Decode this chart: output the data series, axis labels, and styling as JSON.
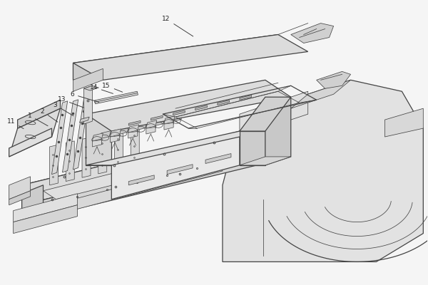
{
  "bg_color": "#f5f5f5",
  "line_color": "#444444",
  "fill_light": "#e8e8e8",
  "fill_mid": "#d8d8d8",
  "fill_dark": "#c8c8c8",
  "fig_width": 6.0,
  "fig_height": 4.0,
  "dpi": 100,
  "annotations": {
    "1": {
      "txt": [
        0.068,
        0.595
      ],
      "arr": [
        0.115,
        0.555
      ]
    },
    "2": {
      "txt": [
        0.098,
        0.61
      ],
      "arr": [
        0.138,
        0.568
      ]
    },
    "3": {
      "txt": [
        0.128,
        0.632
      ],
      "arr": [
        0.175,
        0.59
      ]
    },
    "6": {
      "txt": [
        0.168,
        0.67
      ],
      "arr": [
        0.235,
        0.64
      ]
    },
    "11": {
      "txt": [
        0.025,
        0.575
      ],
      "arr": [
        0.058,
        0.545
      ]
    },
    "12": {
      "txt": [
        0.388,
        0.935
      ],
      "arr": [
        0.455,
        0.87
      ]
    },
    "13": {
      "txt": [
        0.143,
        0.652
      ],
      "arr": [
        0.2,
        0.62
      ]
    },
    "14": {
      "txt": [
        0.218,
        0.695
      ],
      "arr": [
        0.268,
        0.67
      ]
    },
    "15": {
      "txt": [
        0.248,
        0.7
      ],
      "arr": [
        0.29,
        0.675
      ]
    }
  }
}
